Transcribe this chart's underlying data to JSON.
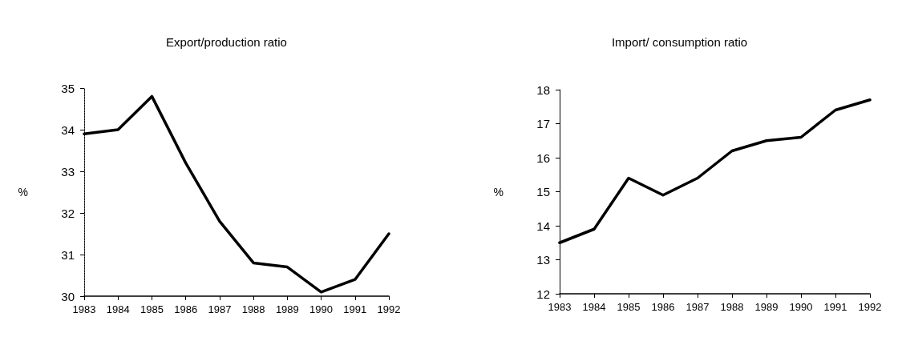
{
  "chart_data": [
    {
      "type": "line",
      "title": "Export/production ratio",
      "ylabel": "%",
      "categories": [
        "1983",
        "1984",
        "1985",
        "1986",
        "1987",
        "1988",
        "1989",
        "1990",
        "1991",
        "1992"
      ],
      "series": [
        {
          "color": "#000000",
          "values": [
            33.9,
            34.0,
            34.8,
            33.2,
            31.8,
            30.8,
            30.7,
            30.1,
            30.4,
            31.5
          ]
        }
      ],
      "ylim": [
        30,
        35
      ],
      "yticks": [
        30,
        31,
        32,
        33,
        34,
        35
      ],
      "grid": false,
      "marker": "none",
      "line_style": "solid"
    },
    {
      "type": "line",
      "title": "Import/ consumption ratio",
      "ylabel": "%",
      "categories": [
        "1983",
        "1984",
        "1985",
        "1986",
        "1987",
        "1988",
        "1989",
        "1990",
        "1991",
        "1992"
      ],
      "series": [
        {
          "color": "#000000",
          "values": [
            13.5,
            13.9,
            15.4,
            14.9,
            15.4,
            16.2,
            16.5,
            16.6,
            17.4,
            17.7
          ]
        }
      ],
      "ylim": [
        12,
        18
      ],
      "yticks": [
        12,
        13,
        14,
        15,
        16,
        17,
        18
      ],
      "grid": false,
      "marker": "none",
      "line_style": "solid"
    }
  ]
}
